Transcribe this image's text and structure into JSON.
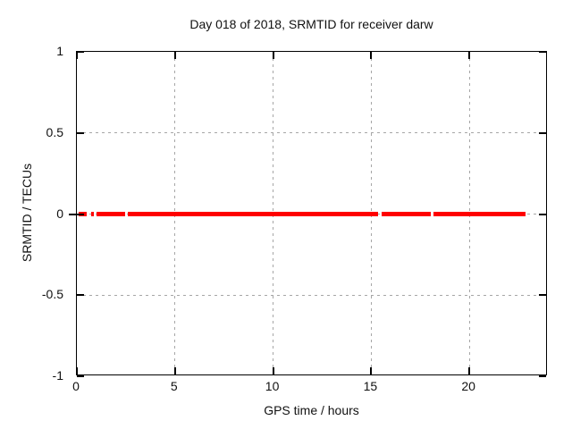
{
  "chart_data": {
    "type": "line",
    "title": "Day 018 of 2018, SRMTID for receiver darw",
    "xlabel": "GPS time / hours",
    "ylabel": "SRMTID / TECUs",
    "xlim": [
      0,
      24
    ],
    "ylim": [
      -1,
      1
    ],
    "x_ticks": [
      0,
      5,
      10,
      15,
      20
    ],
    "x_tick_labels": [
      "0",
      "5",
      "10",
      "15",
      "20"
    ],
    "y_ticks": [
      1,
      0.5,
      0,
      -0.5,
      -1
    ],
    "y_tick_labels": [
      "1",
      "0.5",
      "0",
      "-0.5",
      "-1"
    ],
    "grid": true,
    "legend": "none",
    "series": [
      {
        "name": "SRMTID",
        "color": "#ff0000",
        "y_value": 0,
        "segments_x_hours": [
          [
            0.1,
            0.5
          ],
          [
            0.73,
            0.87
          ],
          [
            1.0,
            2.45
          ],
          [
            2.6,
            15.37
          ],
          [
            15.55,
            18.03
          ],
          [
            18.17,
            22.87
          ]
        ]
      }
    ]
  },
  "colors": {
    "line": "#ff0000",
    "grid": "#a6a6a6",
    "axis": "#000000",
    "background": "#ffffff",
    "text": "#111111"
  }
}
